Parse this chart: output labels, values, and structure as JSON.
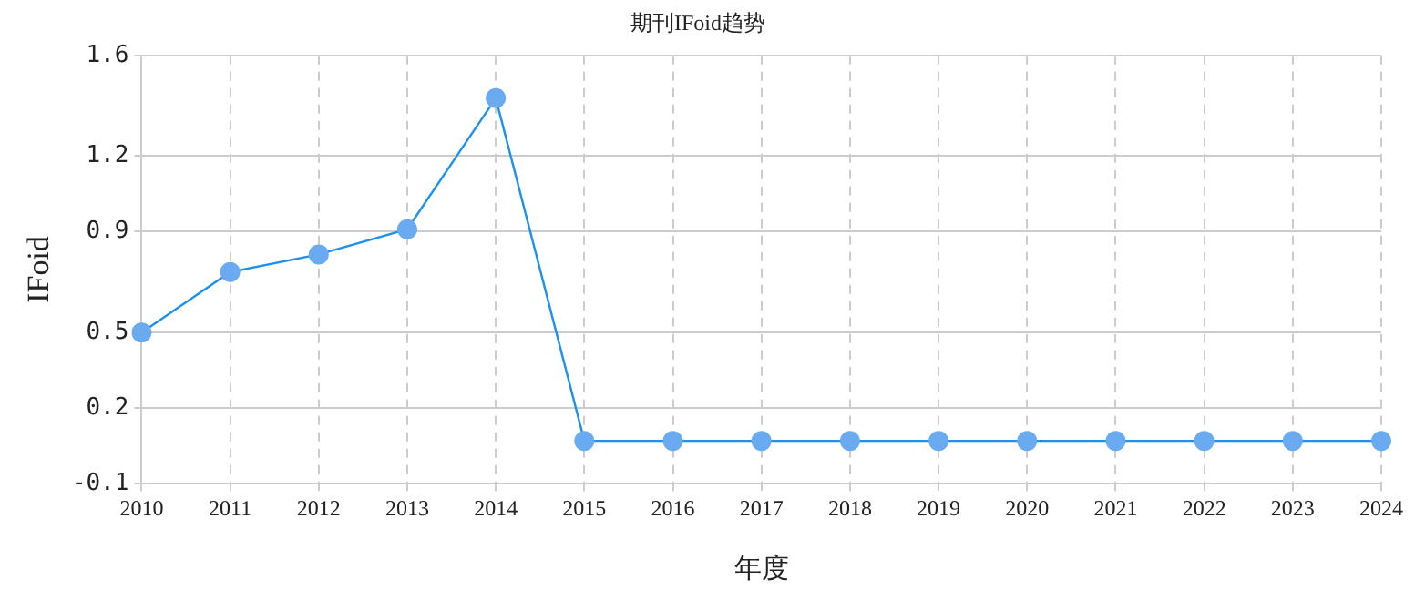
{
  "chart_data": {
    "type": "line",
    "title": "期刊IFoid趋势",
    "xlabel": "年度",
    "ylabel": "IFoid",
    "categories": [
      "2010",
      "2011",
      "2012",
      "2013",
      "2014",
      "2015",
      "2016",
      "2017",
      "2018",
      "2019",
      "2020",
      "2021",
      "2022",
      "2023",
      "2024"
    ],
    "series": [
      {
        "color": "#1e90ee",
        "values": [
          0.5,
          0.74,
          0.81,
          0.91,
          1.43,
          0.07,
          0.07,
          0.07,
          0.07,
          0.07,
          0.07,
          0.07,
          0.07,
          0.07,
          0.07
        ]
      }
    ],
    "ylim": [
      -0.1,
      1.6
    ],
    "yticks": [
      -0.1,
      0.2,
      0.5,
      0.9,
      1.2,
      1.6
    ],
    "grid": true,
    "legend": false,
    "marker": "circle",
    "line_style": "solid"
  }
}
